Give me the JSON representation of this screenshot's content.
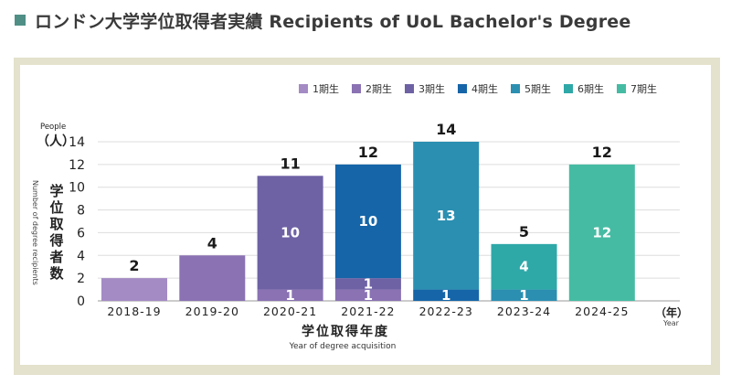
{
  "page": {
    "title": "ロンドン大学学位取得者実績 Recipients of UoL Bachelor's Degree"
  },
  "chart_data": {
    "type": "bar",
    "stacked": true,
    "categories": [
      "2018-19",
      "2019-20",
      "2020-21",
      "2021-22",
      "2022-23",
      "2023-24",
      "2024-25"
    ],
    "series": [
      {
        "name": "1期生",
        "color": "#a48bc4",
        "values": [
          2,
          0,
          0,
          0,
          0,
          0,
          0
        ]
      },
      {
        "name": "2期生",
        "color": "#8a72b3",
        "values": [
          0,
          4,
          1,
          1,
          0,
          0,
          0
        ]
      },
      {
        "name": "3期生",
        "color": "#6e62a4",
        "values": [
          0,
          0,
          10,
          1,
          0,
          0,
          0
        ]
      },
      {
        "name": "4期生",
        "color": "#1565a8",
        "values": [
          0,
          0,
          0,
          10,
          1,
          0,
          0
        ]
      },
      {
        "name": "5期生",
        "color": "#2b8fb1",
        "values": [
          0,
          0,
          0,
          0,
          13,
          1,
          0
        ]
      },
      {
        "name": "6期生",
        "color": "#2fa8a8",
        "values": [
          0,
          0,
          0,
          0,
          0,
          4,
          0
        ]
      },
      {
        "name": "7期生",
        "color": "#46bba3",
        "values": [
          0,
          0,
          0,
          0,
          0,
          0,
          12
        ]
      }
    ],
    "segment_labels": [
      {
        "series": 2,
        "category": 2,
        "text": "1"
      },
      {
        "series": 2,
        "category": 2,
        "text": "10"
      },
      {
        "series": 3,
        "category": 3,
        "text": "1"
      },
      {
        "series": 3,
        "category": 3,
        "text": "1"
      },
      {
        "series": 3,
        "category": 3,
        "text": "10"
      },
      {
        "series": 4,
        "category": 4,
        "text": "1"
      },
      {
        "series": 4,
        "category": 4,
        "text": "13"
      },
      {
        "series": 5,
        "category": 5,
        "text": "1"
      },
      {
        "series": 5,
        "category": 5,
        "text": "4"
      },
      {
        "series": 6,
        "category": 6,
        "text": "12"
      }
    ],
    "totals": [
      2,
      4,
      11,
      12,
      14,
      5,
      12
    ],
    "y_ticks": [
      "0",
      "2",
      "4",
      "6",
      "8",
      "10",
      "12",
      "14"
    ],
    "ylim": [
      0,
      14
    ],
    "y_unit_en": "People",
    "y_unit_ja": "（人）",
    "ylabel_ja": "学位取得者数",
    "ylabel_en": "Number of degree recipients",
    "xlabel_ja": "学位取得年度",
    "xlabel_en": "Year of degree acquisition",
    "x_unit_ja": "（年）",
    "x_unit_en": "Year",
    "grid": true,
    "legend_position": "top-right"
  }
}
